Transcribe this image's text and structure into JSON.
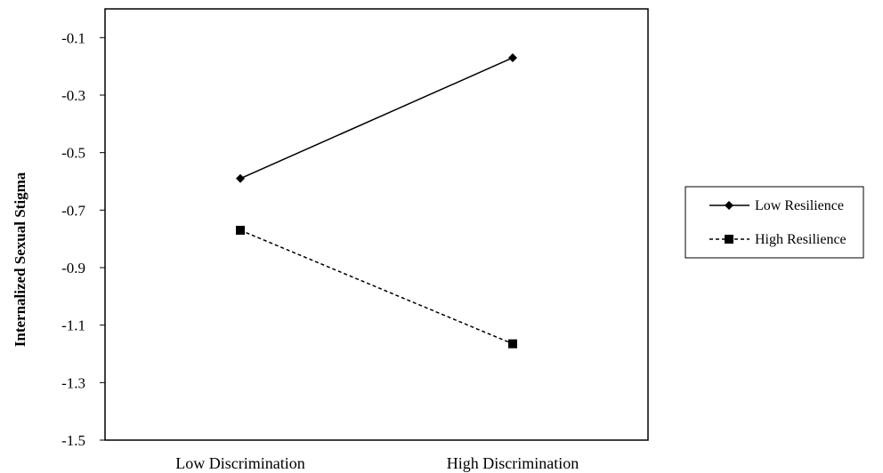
{
  "chart_data": {
    "type": "line",
    "categories": [
      "Low Discrimination",
      "High Discrimination"
    ],
    "series": [
      {
        "name": "Low Resilience",
        "values": [
          -0.59,
          -0.17
        ],
        "marker": "diamond",
        "line": "solid",
        "color": "#000000"
      },
      {
        "name": "High Resilience",
        "values": [
          -0.77,
          -1.165
        ],
        "marker": "square",
        "line": "dashed",
        "color": "#000000"
      }
    ],
    "title": "",
    "xlabel": "",
    "ylabel": "Internalized Sexual Stigma",
    "ylim": [
      -1.5,
      0.0
    ],
    "yticks": [
      -0.1,
      -0.3,
      -0.5,
      -0.7,
      -0.9,
      -1.1,
      -1.3,
      -1.5
    ],
    "ytick_labels": [
      "-0.1",
      "-0.3",
      "-0.5",
      "-0.7",
      "-0.9",
      "-1.1",
      "-1.3",
      "-1.5"
    ],
    "grid": false,
    "legend_position": "right"
  }
}
